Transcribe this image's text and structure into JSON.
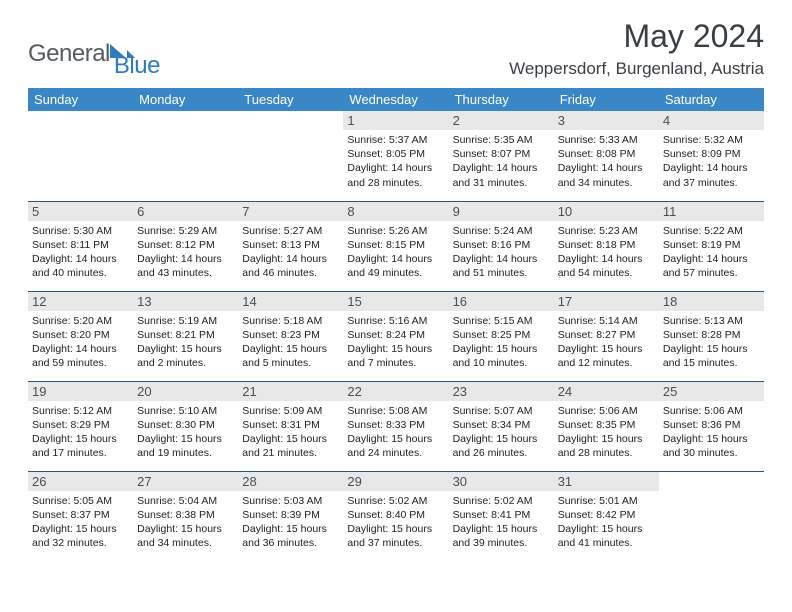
{
  "logo": {
    "text1": "General",
    "text2": "Blue"
  },
  "title": "May 2024",
  "subtitle": "Weppersdorf, Burgenland, Austria",
  "colors": {
    "header_bg": "#3a87c7",
    "header_fg": "#ffffff",
    "row_border": "#1f5a8a",
    "daynum_bg": "#e8e8e8",
    "logo_gray": "#555b60",
    "logo_blue": "#2f7bbf"
  },
  "day_headers": [
    "Sunday",
    "Monday",
    "Tuesday",
    "Wednesday",
    "Thursday",
    "Friday",
    "Saturday"
  ],
  "weeks": [
    [
      {
        "n": "",
        "sr": "",
        "ss": "",
        "dl": ""
      },
      {
        "n": "",
        "sr": "",
        "ss": "",
        "dl": ""
      },
      {
        "n": "",
        "sr": "",
        "ss": "",
        "dl": ""
      },
      {
        "n": "1",
        "sr": "5:37 AM",
        "ss": "8:05 PM",
        "dl": "14 hours and 28 minutes."
      },
      {
        "n": "2",
        "sr": "5:35 AM",
        "ss": "8:07 PM",
        "dl": "14 hours and 31 minutes."
      },
      {
        "n": "3",
        "sr": "5:33 AM",
        "ss": "8:08 PM",
        "dl": "14 hours and 34 minutes."
      },
      {
        "n": "4",
        "sr": "5:32 AM",
        "ss": "8:09 PM",
        "dl": "14 hours and 37 minutes."
      }
    ],
    [
      {
        "n": "5",
        "sr": "5:30 AM",
        "ss": "8:11 PM",
        "dl": "14 hours and 40 minutes."
      },
      {
        "n": "6",
        "sr": "5:29 AM",
        "ss": "8:12 PM",
        "dl": "14 hours and 43 minutes."
      },
      {
        "n": "7",
        "sr": "5:27 AM",
        "ss": "8:13 PM",
        "dl": "14 hours and 46 minutes."
      },
      {
        "n": "8",
        "sr": "5:26 AM",
        "ss": "8:15 PM",
        "dl": "14 hours and 49 minutes."
      },
      {
        "n": "9",
        "sr": "5:24 AM",
        "ss": "8:16 PM",
        "dl": "14 hours and 51 minutes."
      },
      {
        "n": "10",
        "sr": "5:23 AM",
        "ss": "8:18 PM",
        "dl": "14 hours and 54 minutes."
      },
      {
        "n": "11",
        "sr": "5:22 AM",
        "ss": "8:19 PM",
        "dl": "14 hours and 57 minutes."
      }
    ],
    [
      {
        "n": "12",
        "sr": "5:20 AM",
        "ss": "8:20 PM",
        "dl": "14 hours and 59 minutes."
      },
      {
        "n": "13",
        "sr": "5:19 AM",
        "ss": "8:21 PM",
        "dl": "15 hours and 2 minutes."
      },
      {
        "n": "14",
        "sr": "5:18 AM",
        "ss": "8:23 PM",
        "dl": "15 hours and 5 minutes."
      },
      {
        "n": "15",
        "sr": "5:16 AM",
        "ss": "8:24 PM",
        "dl": "15 hours and 7 minutes."
      },
      {
        "n": "16",
        "sr": "5:15 AM",
        "ss": "8:25 PM",
        "dl": "15 hours and 10 minutes."
      },
      {
        "n": "17",
        "sr": "5:14 AM",
        "ss": "8:27 PM",
        "dl": "15 hours and 12 minutes."
      },
      {
        "n": "18",
        "sr": "5:13 AM",
        "ss": "8:28 PM",
        "dl": "15 hours and 15 minutes."
      }
    ],
    [
      {
        "n": "19",
        "sr": "5:12 AM",
        "ss": "8:29 PM",
        "dl": "15 hours and 17 minutes."
      },
      {
        "n": "20",
        "sr": "5:10 AM",
        "ss": "8:30 PM",
        "dl": "15 hours and 19 minutes."
      },
      {
        "n": "21",
        "sr": "5:09 AM",
        "ss": "8:31 PM",
        "dl": "15 hours and 21 minutes."
      },
      {
        "n": "22",
        "sr": "5:08 AM",
        "ss": "8:33 PM",
        "dl": "15 hours and 24 minutes."
      },
      {
        "n": "23",
        "sr": "5:07 AM",
        "ss": "8:34 PM",
        "dl": "15 hours and 26 minutes."
      },
      {
        "n": "24",
        "sr": "5:06 AM",
        "ss": "8:35 PM",
        "dl": "15 hours and 28 minutes."
      },
      {
        "n": "25",
        "sr": "5:06 AM",
        "ss": "8:36 PM",
        "dl": "15 hours and 30 minutes."
      }
    ],
    [
      {
        "n": "26",
        "sr": "5:05 AM",
        "ss": "8:37 PM",
        "dl": "15 hours and 32 minutes."
      },
      {
        "n": "27",
        "sr": "5:04 AM",
        "ss": "8:38 PM",
        "dl": "15 hours and 34 minutes."
      },
      {
        "n": "28",
        "sr": "5:03 AM",
        "ss": "8:39 PM",
        "dl": "15 hours and 36 minutes."
      },
      {
        "n": "29",
        "sr": "5:02 AM",
        "ss": "8:40 PM",
        "dl": "15 hours and 37 minutes."
      },
      {
        "n": "30",
        "sr": "5:02 AM",
        "ss": "8:41 PM",
        "dl": "15 hours and 39 minutes."
      },
      {
        "n": "31",
        "sr": "5:01 AM",
        "ss": "8:42 PM",
        "dl": "15 hours and 41 minutes."
      },
      {
        "n": "",
        "sr": "",
        "ss": "",
        "dl": ""
      }
    ]
  ],
  "labels": {
    "sunrise": "Sunrise:",
    "sunset": "Sunset:",
    "daylight": "Daylight:"
  }
}
